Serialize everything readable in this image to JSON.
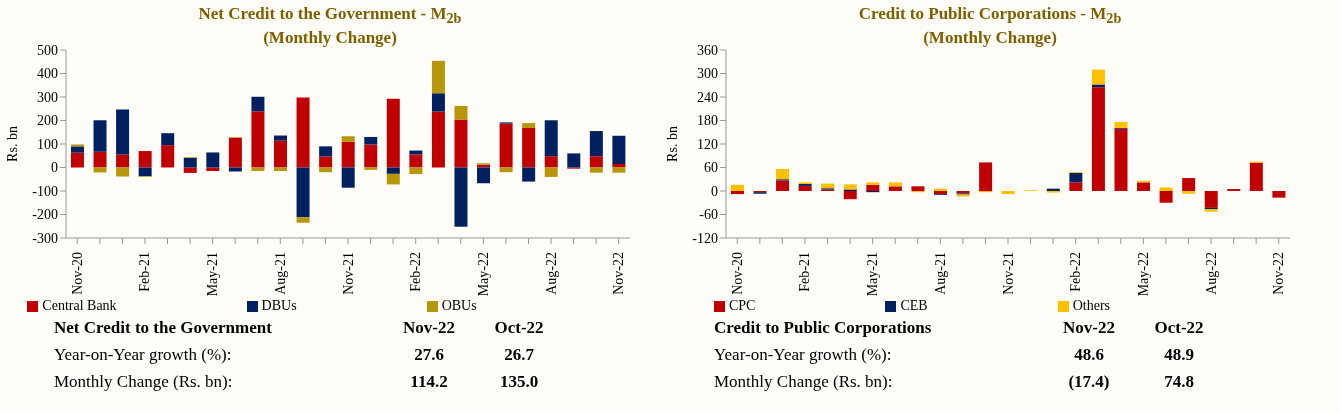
{
  "chart_data": [
    {
      "type": "bar",
      "title": "Net Credit to the Government - M$_{2b}$ (Monthly Change)",
      "ylabel": "Rs. bn",
      "stacked": true,
      "legend": "bottom",
      "categories": [
        "Nov-20",
        null,
        null,
        "Feb-21",
        null,
        null,
        "May-21",
        null,
        null,
        "Aug-21",
        null,
        null,
        "Nov-21",
        null,
        null,
        "Feb-22",
        null,
        null,
        "May-22",
        null,
        null,
        "Aug-22",
        null,
        null,
        "Nov-22"
      ],
      "series": [
        {
          "name": "Central Bank",
          "color": "#c00000",
          "values": [
            63,
            67,
            55,
            70,
            95,
            -23,
            -15,
            126,
            239,
            114,
            298,
            47,
            110,
            98,
            293,
            55,
            238,
            204,
            12,
            187,
            168,
            48,
            -5,
            48,
            15
          ]
        },
        {
          "name": "DBUs",
          "color": "#002060",
          "values": [
            27,
            134,
            192,
            -37,
            51,
            41,
            64,
            -17,
            62,
            22,
            -212,
            43,
            -86,
            32,
            -27,
            17,
            78,
            -252,
            -67,
            5,
            -60,
            153,
            60,
            107,
            120
          ]
        },
        {
          "name": "OBUs",
          "color": "#b8960a",
          "values": [
            8,
            -21,
            -38,
            -3,
            0,
            3,
            null,
            3,
            -15,
            -15,
            -23,
            -20,
            23,
            -10,
            -45,
            -28,
            138,
            58,
            6,
            -20,
            21,
            -40,
            null,
            -22,
            -22
          ]
        }
      ],
      "ylim": [
        -300,
        500
      ],
      "yticks": [
        -300,
        -200,
        -100,
        0,
        100,
        200,
        300,
        400,
        500
      ],
      "annotations": [
        "Net Credit to the Government",
        "Nov-22",
        "Oct-22",
        "Year-on-Year growth (%):",
        "27.6",
        "26.7",
        "Monthly Change (Rs. bn):",
        "114.2",
        "135.0"
      ]
    },
    {
      "type": "bar",
      "title": "Credit to Public Corporations - M$_{2b}$ (Monthly Change)",
      "ylabel": "Rs. bn",
      "stacked": true,
      "legend": "bottom",
      "categories": [
        "Nov-20",
        null,
        null,
        "Feb-21",
        null,
        null,
        "May-21",
        null,
        null,
        "Aug-21",
        null,
        null,
        "Nov-21",
        null,
        null,
        "Feb-22",
        null,
        null,
        "May-22",
        null,
        null,
        "Aug-22",
        null,
        null,
        "Nov-22"
      ],
      "series": [
        {
          "name": "CPC",
          "color": "#c00000",
          "values": [
            -8,
            -3,
            27,
            13,
            4,
            -21,
            16,
            12,
            12,
            -8,
            -6,
            73,
            0,
            0,
            0,
            22,
            265,
            159,
            22,
            -30,
            33,
            -43,
            5,
            72,
            -17
          ]
        },
        {
          "name": "CEB",
          "color": "#002060",
          "values": [
            0,
            -4,
            3,
            5,
            3,
            4,
            -3,
            null,
            0,
            -2,
            -3,
            0,
            0,
            0,
            6,
            24,
            7,
            2,
            0,
            null,
            0,
            -3,
            0,
            0,
            0
          ]
        },
        {
          "name": "Others",
          "color": "#ffc000",
          "values": [
            16,
            0,
            26,
            4,
            12,
            13,
            6,
            10,
            -3,
            6,
            -5,
            -3,
            -8,
            2,
            -4,
            2,
            38,
            15,
            4,
            9,
            -7,
            -7,
            0,
            3,
            0
          ]
        }
      ],
      "ylim": [
        -120,
        360
      ],
      "yticks": [
        -120,
        -60,
        0,
        60,
        120,
        180,
        240,
        300,
        360
      ],
      "annotations": [
        "Credit to Public Corporations",
        "Nov-22",
        "Oct-22",
        "Year-on-Year growth (%):",
        "48.6",
        "48.9",
        "Monthly Change (Rs. bn):",
        "(17.4)",
        "74.8"
      ]
    }
  ]
}
